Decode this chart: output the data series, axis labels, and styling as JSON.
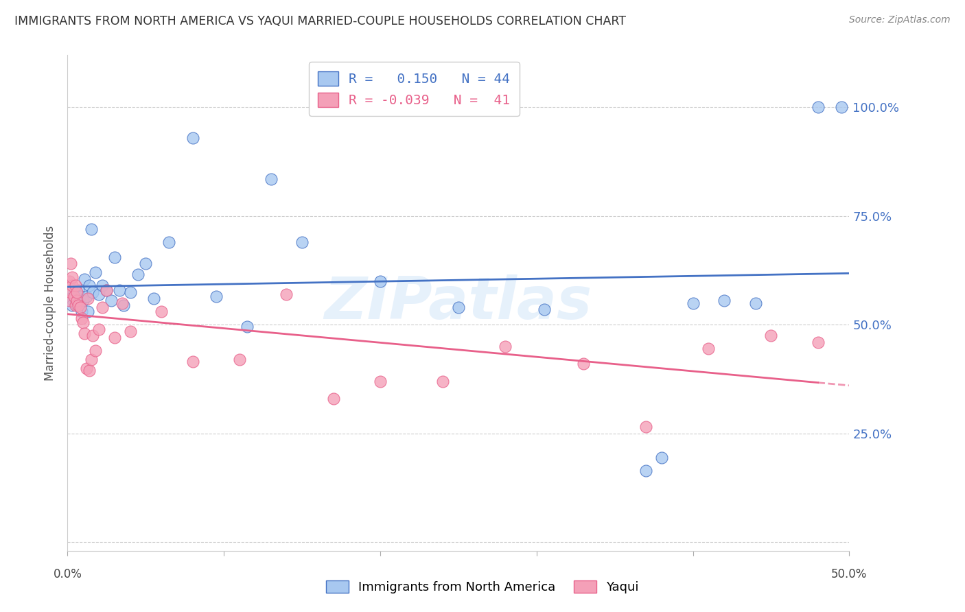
{
  "title": "IMMIGRANTS FROM NORTH AMERICA VS YAQUI MARRIED-COUPLE HOUSEHOLDS CORRELATION CHART",
  "source": "Source: ZipAtlas.com",
  "ylabel": "Married-couple Households",
  "legend_label_blue": "Immigrants from North America",
  "legend_label_pink": "Yaqui",
  "blue_color": "#A8C8F0",
  "pink_color": "#F4A0B8",
  "blue_line_color": "#4472C4",
  "pink_line_color": "#E8608A",
  "blue_r": " 0.150",
  "blue_n": "44",
  "pink_r": "-0.039",
  "pink_n": " 41",
  "xlim": [
    0.0,
    0.5
  ],
  "ylim": [
    -0.02,
    1.12
  ],
  "ytick_positions": [
    0.0,
    0.25,
    0.5,
    0.75,
    1.0
  ],
  "ytick_labels": [
    "",
    "25.0%",
    "50.0%",
    "75.0%",
    "100.0%"
  ],
  "xtick_labels": [
    "0.0%",
    "50.0%"
  ],
  "blue_x": [
    0.001,
    0.002,
    0.003,
    0.004,
    0.005,
    0.006,
    0.007,
    0.008,
    0.009,
    0.01,
    0.011,
    0.012,
    0.013,
    0.014,
    0.015,
    0.016,
    0.018,
    0.02,
    0.022,
    0.025,
    0.028,
    0.03,
    0.033,
    0.036,
    0.04,
    0.045,
    0.05,
    0.055,
    0.065,
    0.08,
    0.095,
    0.115,
    0.13,
    0.15,
    0.2,
    0.25,
    0.305,
    0.37,
    0.38,
    0.4,
    0.42,
    0.44,
    0.48,
    0.495
  ],
  "blue_y": [
    0.555,
    0.56,
    0.545,
    0.575,
    0.56,
    0.545,
    0.58,
    0.565,
    0.53,
    0.555,
    0.605,
    0.565,
    0.53,
    0.59,
    0.72,
    0.575,
    0.62,
    0.57,
    0.59,
    0.58,
    0.555,
    0.655,
    0.58,
    0.545,
    0.575,
    0.615,
    0.64,
    0.56,
    0.69,
    0.93,
    0.565,
    0.495,
    0.835,
    0.69,
    0.6,
    0.54,
    0.535,
    0.165,
    0.195,
    0.55,
    0.555,
    0.55,
    1.0,
    1.0
  ],
  "pink_x": [
    0.001,
    0.001,
    0.002,
    0.002,
    0.003,
    0.003,
    0.004,
    0.005,
    0.005,
    0.006,
    0.006,
    0.007,
    0.008,
    0.009,
    0.01,
    0.011,
    0.012,
    0.013,
    0.014,
    0.015,
    0.016,
    0.018,
    0.02,
    0.022,
    0.025,
    0.03,
    0.035,
    0.04,
    0.06,
    0.08,
    0.11,
    0.14,
    0.17,
    0.2,
    0.24,
    0.28,
    0.33,
    0.37,
    0.41,
    0.45,
    0.48
  ],
  "pink_y": [
    0.555,
    0.6,
    0.64,
    0.575,
    0.59,
    0.61,
    0.565,
    0.545,
    0.59,
    0.555,
    0.575,
    0.545,
    0.54,
    0.515,
    0.505,
    0.48,
    0.4,
    0.56,
    0.395,
    0.42,
    0.475,
    0.44,
    0.49,
    0.54,
    0.58,
    0.47,
    0.55,
    0.485,
    0.53,
    0.415,
    0.42,
    0.57,
    0.33,
    0.37,
    0.37,
    0.45,
    0.41,
    0.265,
    0.445,
    0.475,
    0.46
  ]
}
